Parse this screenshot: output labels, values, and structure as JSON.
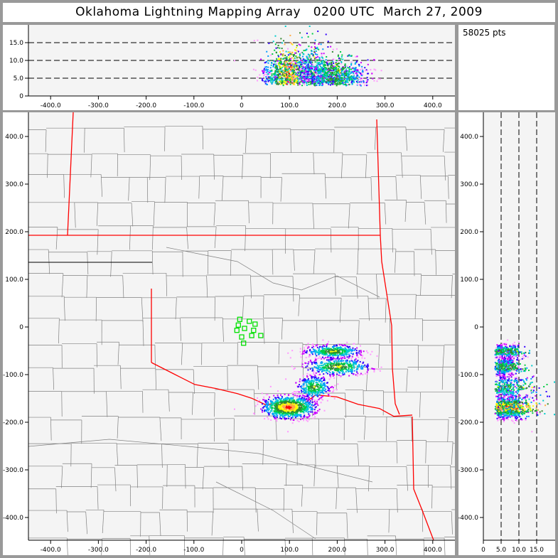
{
  "title": "Oklahoma Lightning Mapping Array   0200 UTC  March 27, 2009",
  "point_count": "58025 pts",
  "colors": {
    "border_state": "#ff0000",
    "county": "#808080",
    "station": "#00e000",
    "plot_bg": "#f4f4f4",
    "density": [
      "#ff99ff",
      "#cc00ff",
      "#3300ff",
      "#0099ff",
      "#00cccc",
      "#00cc44",
      "#338833",
      "#ffff00",
      "#ffaa44",
      "#ff0000"
    ]
  },
  "chart_data": [
    {
      "type": "scatter",
      "panel": "altitude-vs-east-west",
      "xlim": [
        -446,
        446
      ],
      "ylim": [
        0,
        20
      ],
      "xticks": [
        "-400.0",
        "-300.0",
        "-200.0",
        "-100.0",
        "0",
        "100.0",
        "200.0",
        "300.0",
        "400.0"
      ],
      "xtick_values": [
        -400,
        -300,
        -200,
        -100,
        0,
        100,
        200,
        300,
        400
      ],
      "yticks": [
        "0",
        "5.0",
        "10.0",
        "15.0"
      ],
      "ytick_values": [
        0,
        5,
        10,
        15
      ],
      "grid": "dashed at 5, 10, 15 km"
    },
    {
      "type": "scatter",
      "panel": "plan-view",
      "xlim": [
        -446,
        446
      ],
      "ylim": [
        -448,
        451
      ],
      "xticks": [
        "-400.0",
        "-300.0",
        "-200.0",
        "-100.0",
        "0",
        "100.0",
        "200.0",
        "300.0",
        "400.0"
      ],
      "xtick_values": [
        -400,
        -300,
        -200,
        -100,
        0,
        100,
        200,
        300,
        400
      ],
      "yticks": [
        "400.0",
        "300.0",
        "200.0",
        "100.0",
        "0",
        "-100.0",
        "-200.0",
        "-300.0",
        "-400.0"
      ],
      "ytick_values": [
        400,
        300,
        200,
        100,
        0,
        -100,
        -200,
        -300,
        -400
      ],
      "stations": [
        [
          -4,
          16
        ],
        [
          -7,
          4
        ],
        [
          6,
          -3
        ],
        [
          16,
          12
        ],
        [
          28,
          6
        ],
        [
          -10,
          -7
        ],
        [
          25,
          -7
        ],
        [
          0,
          -21
        ],
        [
          21,
          -18
        ],
        [
          40,
          -18
        ],
        [
          4,
          -34
        ]
      ],
      "clusters": [
        {
          "x": 97,
          "y": -167,
          "sx": 28,
          "sy": 12,
          "zmin": 3,
          "zmax": 12,
          "weight": 1.0
        },
        {
          "x": 150,
          "y": -125,
          "sx": 18,
          "sy": 12,
          "zmin": 3,
          "zmax": 14,
          "weight": 0.35
        },
        {
          "x": 190,
          "y": -50,
          "sx": 30,
          "sy": 7,
          "zmin": 3,
          "zmax": 10,
          "weight": 0.45
        },
        {
          "x": 200,
          "y": -82,
          "sx": 35,
          "sy": 9,
          "zmin": 3,
          "zmax": 10,
          "weight": 0.45
        }
      ]
    },
    {
      "type": "scatter",
      "panel": "north-south-vs-altitude",
      "xlim": [
        0,
        20
      ],
      "ylim": [
        -448,
        451
      ],
      "xticks": [
        "0",
        "5.0",
        "10.0",
        "15.0"
      ],
      "xtick_values": [
        0,
        5,
        10,
        15
      ],
      "yticks": [
        "400.0",
        "300.0",
        "200.0",
        "100.0",
        "0",
        "-100.0",
        "-200.0",
        "-300.0",
        "-400.0"
      ],
      "ytick_values": [
        400,
        300,
        200,
        100,
        0,
        -100,
        -200,
        -300,
        -400
      ],
      "grid": "dashed at 5, 10, 15 km"
    }
  ]
}
